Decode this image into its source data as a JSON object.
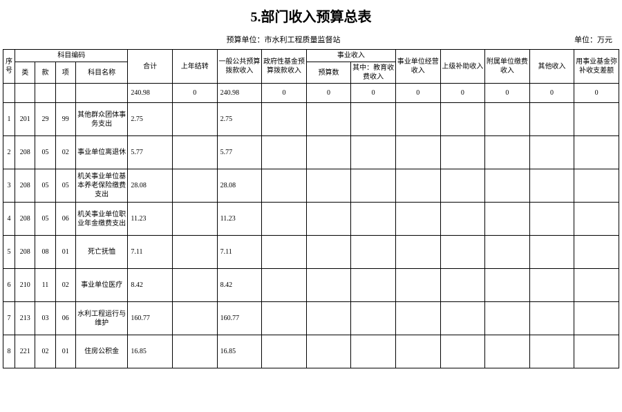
{
  "title": "5.部门收入预算总表",
  "budget_unit_label": "预算单位：",
  "budget_unit_value": "市水利工程质量监督站",
  "currency_unit": "单位：万元",
  "table": {
    "type": "table",
    "background_color": "#ffffff",
    "border_color": "#000000",
    "header": {
      "seq": "序号",
      "subject_code_group": "科目编码",
      "lei": "类",
      "kuan": "款",
      "xiang": "项",
      "subject_name": "科目名称",
      "total": "合计",
      "prev_year": "上年结转",
      "general_budget": "一般公共预算拨款收入",
      "gov_fund": "政府性基金预算拨款收入",
      "career_income_group": "事业收入",
      "career_budget": "预算数",
      "career_edu": "其中：教育收费收入",
      "career_unit_op": "事业单位经营收入",
      "upper_subsidy": "上级补助收入",
      "affiliated_fee": "附属单位缴费收入",
      "other_income": "其他收入",
      "career_fund_diff": "用事业基金弥补收支差额"
    },
    "totals_row": {
      "total": "240.98",
      "prev_year": "0",
      "general_budget": "240.98",
      "gov_fund": "0",
      "career_budget": "0",
      "career_edu": "0",
      "career_unit_op": "0",
      "upper_subsidy": "0",
      "affiliated_fee": "0",
      "other_income": "0",
      "career_fund_diff": "0"
    },
    "rows": [
      {
        "seq": "1",
        "lei": "201",
        "kuan": "29",
        "xiang": "99",
        "name": "其他群众团体事务支出",
        "total": "2.75",
        "general_budget": "2.75"
      },
      {
        "seq": "2",
        "lei": "208",
        "kuan": "05",
        "xiang": "02",
        "name": "事业单位离退休",
        "total": "5.77",
        "general_budget": "5.77"
      },
      {
        "seq": "3",
        "lei": "208",
        "kuan": "05",
        "xiang": "05",
        "name": "机关事业单位基本养老保险缴费支出",
        "total": "28.08",
        "general_budget": "28.08"
      },
      {
        "seq": "4",
        "lei": "208",
        "kuan": "05",
        "xiang": "06",
        "name": "机关事业单位职业年金缴费支出",
        "total": "11.23",
        "general_budget": "11.23"
      },
      {
        "seq": "5",
        "lei": "208",
        "kuan": "08",
        "xiang": "01",
        "name": "死亡抚恤",
        "total": "7.11",
        "general_budget": "7.11"
      },
      {
        "seq": "6",
        "lei": "210",
        "kuan": "11",
        "xiang": "02",
        "name": "事业单位医疗",
        "total": "8.42",
        "general_budget": "8.42"
      },
      {
        "seq": "7",
        "lei": "213",
        "kuan": "03",
        "xiang": "06",
        "name": "水利工程运行与维护",
        "total": "160.77",
        "general_budget": "160.77"
      },
      {
        "seq": "8",
        "lei": "221",
        "kuan": "02",
        "xiang": "01",
        "name": "住房公积金",
        "total": "16.85",
        "general_budget": "16.85"
      }
    ]
  }
}
